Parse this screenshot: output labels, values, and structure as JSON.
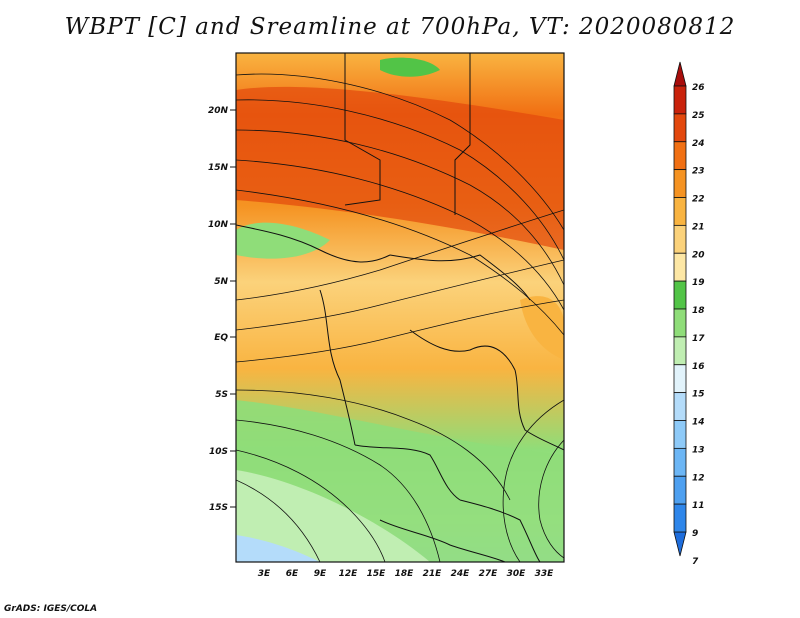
{
  "title": "WBPT [C] and Sreamline at 700hPa, VT: 2020080812",
  "credit": "GrADS: IGES/COLA",
  "map": {
    "variable": "Wet-bulb potential temperature",
    "units": "C",
    "level": "700hPa",
    "lon_labels": [
      "3E",
      "6E",
      "9E",
      "12E",
      "15E",
      "18E",
      "21E",
      "24E",
      "27E",
      "30E",
      "33E"
    ],
    "lat_labels": [
      "20N",
      "15N",
      "10N",
      "5N",
      "EQ",
      "5S",
      "10S",
      "15S"
    ]
  },
  "colorbar": {
    "labels": [
      "7",
      "9",
      "11",
      "12",
      "13",
      "14",
      "15",
      "16",
      "17",
      "18",
      "19",
      "20",
      "21",
      "22",
      "23",
      "24",
      "25",
      "26"
    ],
    "colors": [
      "#1e6ddc",
      "#2e86ea",
      "#4ea0f0",
      "#6cb6f5",
      "#8ecaf8",
      "#b4dcfa",
      "#e2f3fb",
      "#c0eeb2",
      "#8fdd79",
      "#52c447",
      "#fde7a5",
      "#fbd27b",
      "#f9b441",
      "#f59322",
      "#f17013",
      "#e3480d",
      "#c9220b",
      "#a80d0b"
    ]
  }
}
